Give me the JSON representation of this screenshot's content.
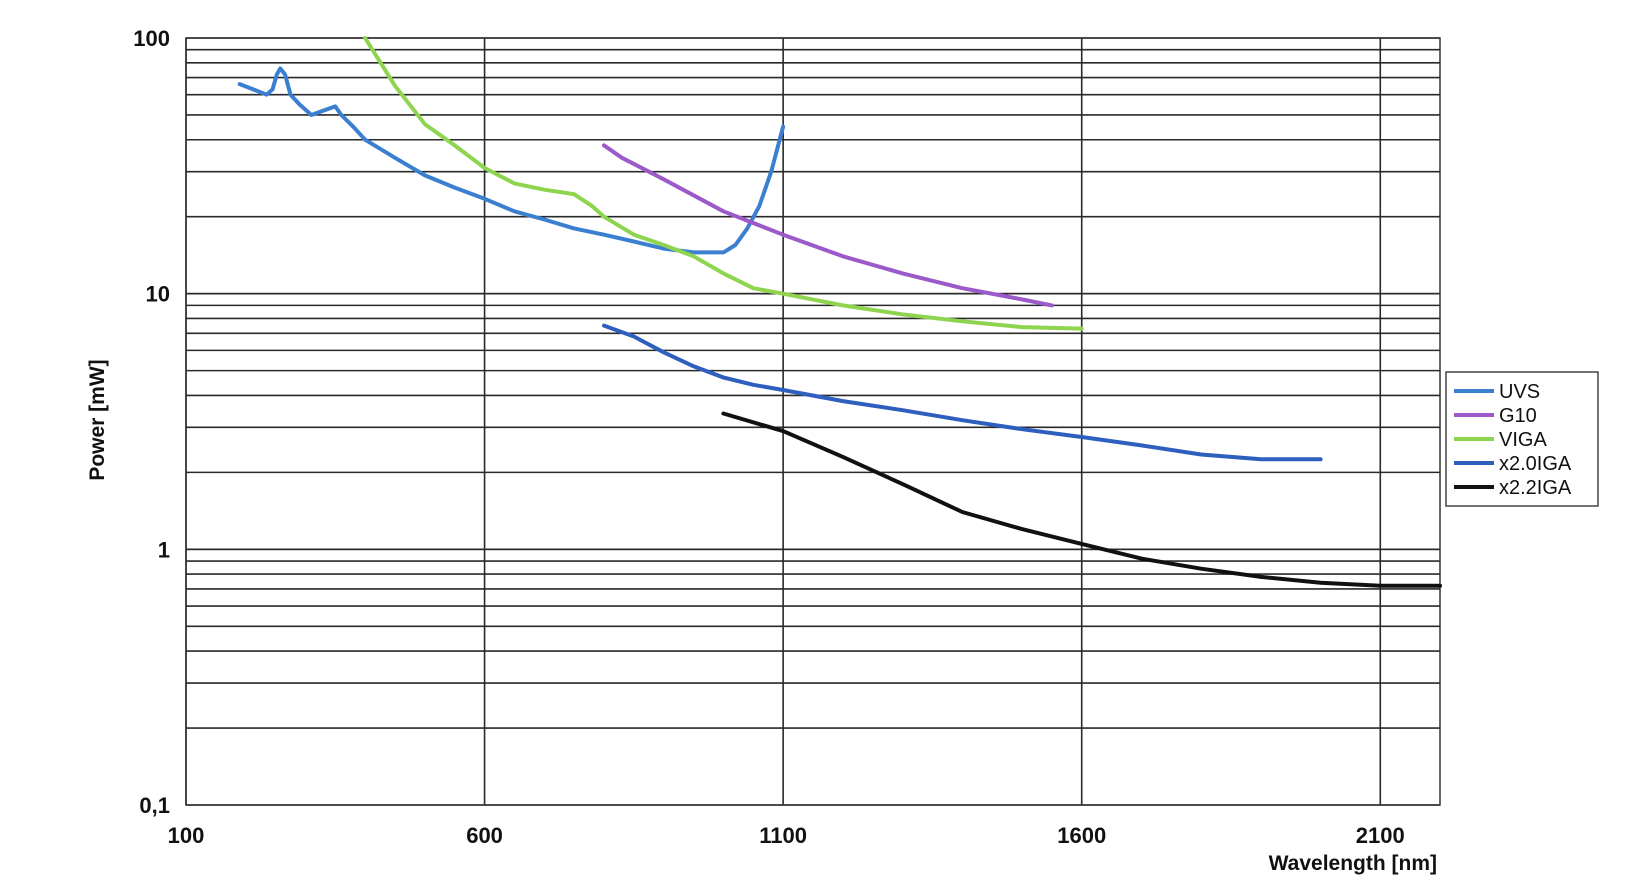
{
  "chart_data": {
    "type": "line",
    "title": "",
    "xlabel": "Wavelength [nm]",
    "ylabel": "Power [mW]",
    "xlim": [
      100,
      2200
    ],
    "ylim": [
      0.1,
      100
    ],
    "y_scale": "log",
    "grid": true,
    "legend_position": "right",
    "x_ticks": [
      100,
      600,
      1100,
      1600,
      2100
    ],
    "x_tick_labels": [
      "100",
      "600",
      "1100",
      "1600",
      "2100"
    ],
    "y_ticks": [
      0.1,
      1,
      10,
      100
    ],
    "y_tick_labels": [
      "0,1",
      "1",
      "10",
      "100"
    ],
    "series": [
      {
        "name": "UVS",
        "color": "#3a7fd0",
        "x": [
          190,
          205,
          220,
          235,
          245,
          252,
          258,
          266,
          275,
          290,
          310,
          330,
          350,
          360,
          380,
          400,
          450,
          500,
          550,
          600,
          650,
          700,
          750,
          800,
          850,
          900,
          950,
          1000,
          1020,
          1040,
          1060,
          1080,
          1100
        ],
        "y": [
          66,
          64,
          62,
          60,
          63,
          72,
          76,
          72,
          60,
          55,
          50,
          52,
          54,
          50,
          45,
          40,
          34,
          29,
          26,
          23.5,
          21,
          19.5,
          18,
          17,
          16,
          15,
          14.5,
          14.5,
          15.5,
          18,
          22,
          30,
          45
        ]
      },
      {
        "name": "G10",
        "color": "#9b59c9",
        "x": [
          800,
          830,
          900,
          1000,
          1100,
          1200,
          1300,
          1400,
          1500,
          1550
        ],
        "y": [
          38,
          34,
          28,
          21,
          17,
          14,
          12,
          10.5,
          9.5,
          9
        ]
      },
      {
        "name": "VIGA",
        "color": "#8ed44f",
        "x": [
          400,
          450,
          500,
          550,
          600,
          650,
          700,
          750,
          780,
          800,
          850,
          900,
          950,
          1000,
          1050,
          1100,
          1200,
          1300,
          1400,
          1500,
          1600
        ],
        "y": [
          100,
          65,
          46,
          38,
          31,
          27,
          25.5,
          24.5,
          22,
          20,
          17,
          15.5,
          14,
          12,
          10.5,
          10,
          9,
          8.3,
          7.8,
          7.4,
          7.3
        ]
      },
      {
        "name": "x2.0IGA",
        "color": "#2e5fbf",
        "x": [
          800,
          850,
          900,
          950,
          1000,
          1050,
          1100,
          1200,
          1300,
          1400,
          1500,
          1600,
          1700,
          1800,
          1900,
          2000
        ],
        "y": [
          7.5,
          6.8,
          5.9,
          5.2,
          4.7,
          4.4,
          4.2,
          3.8,
          3.5,
          3.2,
          2.95,
          2.75,
          2.55,
          2.35,
          2.25,
          2.25
        ]
      },
      {
        "name": "x2.2IGA",
        "color": "#111111",
        "x": [
          1000,
          1100,
          1200,
          1300,
          1400,
          1500,
          1600,
          1700,
          1800,
          1900,
          2000,
          2100,
          2200
        ],
        "y": [
          3.4,
          2.9,
          2.3,
          1.8,
          1.4,
          1.2,
          1.05,
          0.92,
          0.84,
          0.78,
          0.74,
          0.72,
          0.72
        ]
      }
    ]
  }
}
